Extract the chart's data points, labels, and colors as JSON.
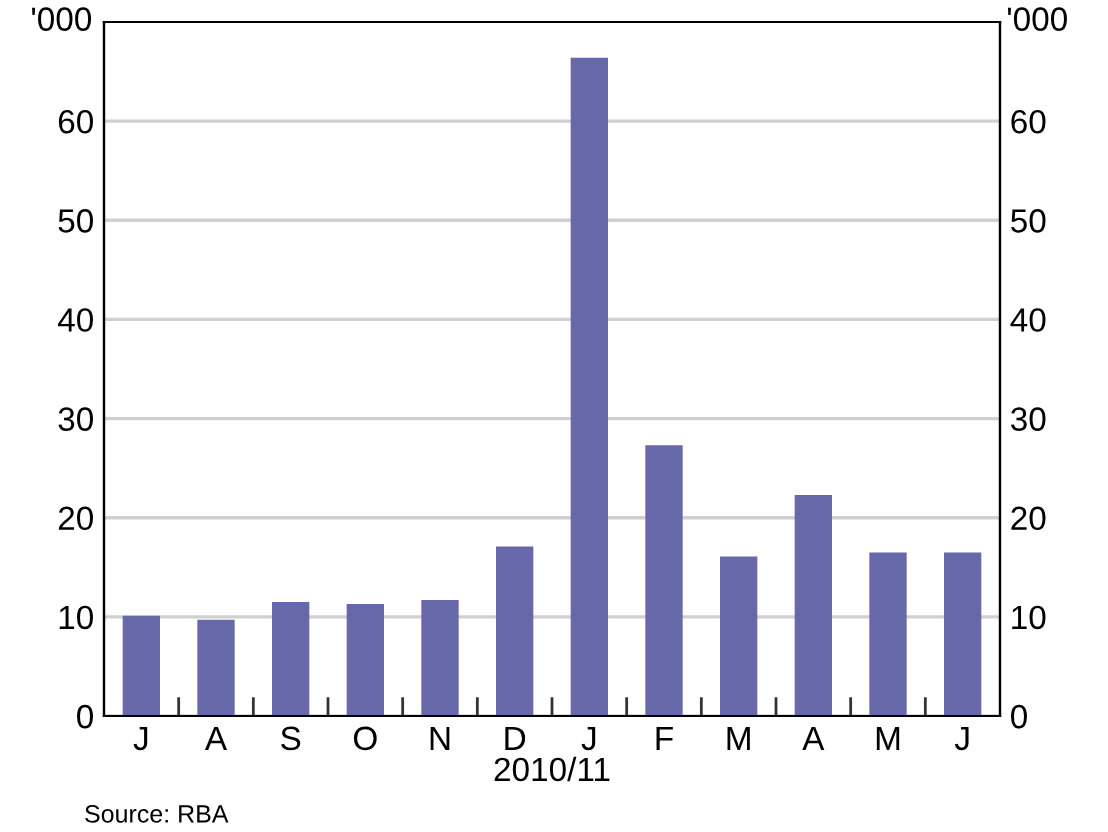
{
  "chart_data": {
    "type": "bar",
    "categories": [
      "J",
      "A",
      "S",
      "O",
      "N",
      "D",
      "J",
      "F",
      "M",
      "A",
      "M",
      "J"
    ],
    "values": [
      10.1,
      9.7,
      11.5,
      11.3,
      11.7,
      17.1,
      66.4,
      27.3,
      16.1,
      22.3,
      16.5,
      16.5
    ],
    "color": "#6768a9",
    "xlabel": "2010/11",
    "ylim": [
      0,
      70
    ],
    "yticks": [
      0,
      10,
      20,
      30,
      40,
      50,
      60
    ],
    "ylabel": "'000",
    "y2lim": [
      0,
      70
    ],
    "y2ticks": [
      0,
      10,
      20,
      30,
      40,
      50,
      60
    ],
    "y2label": "'000",
    "grid": "y",
    "annotations": [
      "Source: RBA"
    ]
  }
}
